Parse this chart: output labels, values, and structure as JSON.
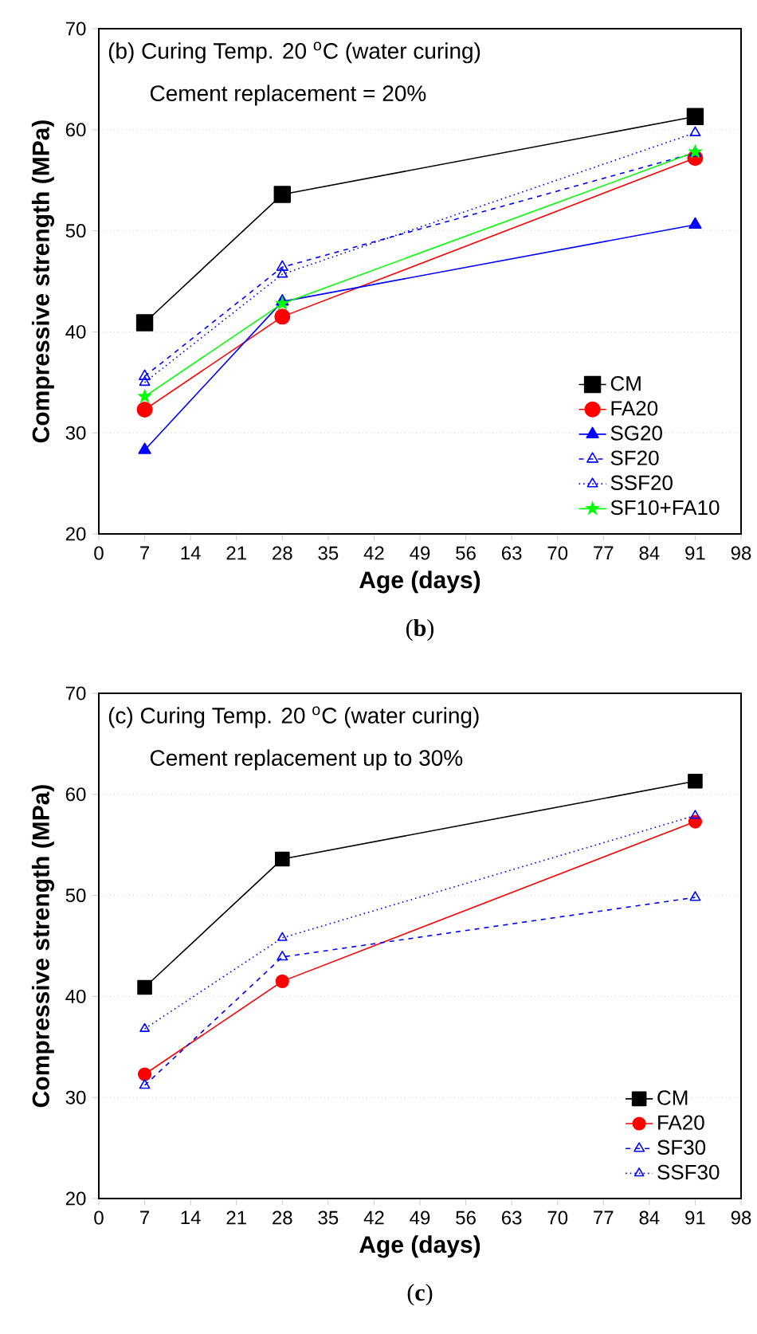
{
  "chart_data": [
    {
      "type": "line",
      "title": "(b) Curing Temp. 20 $^{o}$C (water curing)",
      "subtitle": "Cement replacement = 20%",
      "xlabel": "Age (days)",
      "ylabel": "Compressive strength (MPa)",
      "annotations": [
        "(**b**)"
      ],
      "x": [
        7,
        28,
        91
      ],
      "xlim": [
        0,
        98
      ],
      "xticks": [
        0,
        7,
        14,
        21,
        28,
        35,
        42,
        49,
        56,
        63,
        70,
        77,
        84,
        91,
        98
      ],
      "ylim": [
        20,
        70
      ],
      "yticks": [
        20,
        30,
        40,
        50,
        60,
        70
      ],
      "grid": "y",
      "legend": "bottom right",
      "series": [
        {
          "name": "CM",
          "color": "#000000",
          "values": [
            40.9,
            53.6,
            61.3
          ],
          "marker": "square",
          "line_style": "solid"
        },
        {
          "name": "FA20",
          "color": "#ff0000",
          "values": [
            32.3,
            41.5,
            57.2
          ],
          "marker": "circle",
          "line_style": "solid"
        },
        {
          "name": "SG20",
          "color": "#0000ff",
          "values": [
            28.3,
            43.0,
            50.6
          ],
          "marker": "triangle",
          "line_style": "solid"
        },
        {
          "name": "SF20",
          "color": "#0000ff",
          "values": [
            35.6,
            46.4,
            57.7
          ],
          "marker": "triangle",
          "line_style": "dashed"
        },
        {
          "name": "SSF20",
          "color": "#0000ff",
          "values": [
            35.0,
            45.7,
            59.7
          ],
          "marker": "triangle",
          "line_style": "dotted"
        },
        {
          "name": "SF10+FA10",
          "color": "#00ff00",
          "values": [
            33.6,
            42.8,
            57.8
          ],
          "marker": "star",
          "line_style": "solid"
        }
      ]
    },
    {
      "type": "line",
      "title": "(c) Curing Temp. 20 $^{o}$C (water curing)",
      "subtitle": "Cement replacement up to 30%",
      "xlabel": "Age (days)",
      "ylabel": "Compressive strength (MPa)",
      "annotations": [
        "(**c**)"
      ],
      "x": [
        7,
        28,
        91
      ],
      "xlim": [
        0,
        98
      ],
      "xticks": [
        0,
        7,
        14,
        21,
        28,
        35,
        42,
        49,
        56,
        63,
        70,
        77,
        84,
        91,
        98
      ],
      "ylim": [
        20,
        70
      ],
      "yticks": [
        20,
        30,
        40,
        50,
        60,
        70
      ],
      "grid": "y",
      "legend": "bottom right",
      "series": [
        {
          "name": "CM",
          "color": "#000000",
          "values": [
            40.9,
            53.6,
            61.3
          ],
          "marker": "square",
          "line_style": "solid"
        },
        {
          "name": "FA20",
          "color": "#ff0000",
          "values": [
            32.3,
            41.5,
            57.3
          ],
          "marker": "circle",
          "line_style": "solid"
        },
        {
          "name": "SF30",
          "color": "#0000ff",
          "values": [
            31.2,
            43.9,
            49.8
          ],
          "marker": "triangle",
          "line_style": "dashed"
        },
        {
          "name": "SSF30",
          "color": "#0000ff",
          "values": [
            36.8,
            45.8,
            57.9
          ],
          "marker": "triangle",
          "line_style": "dotted"
        }
      ]
    }
  ]
}
